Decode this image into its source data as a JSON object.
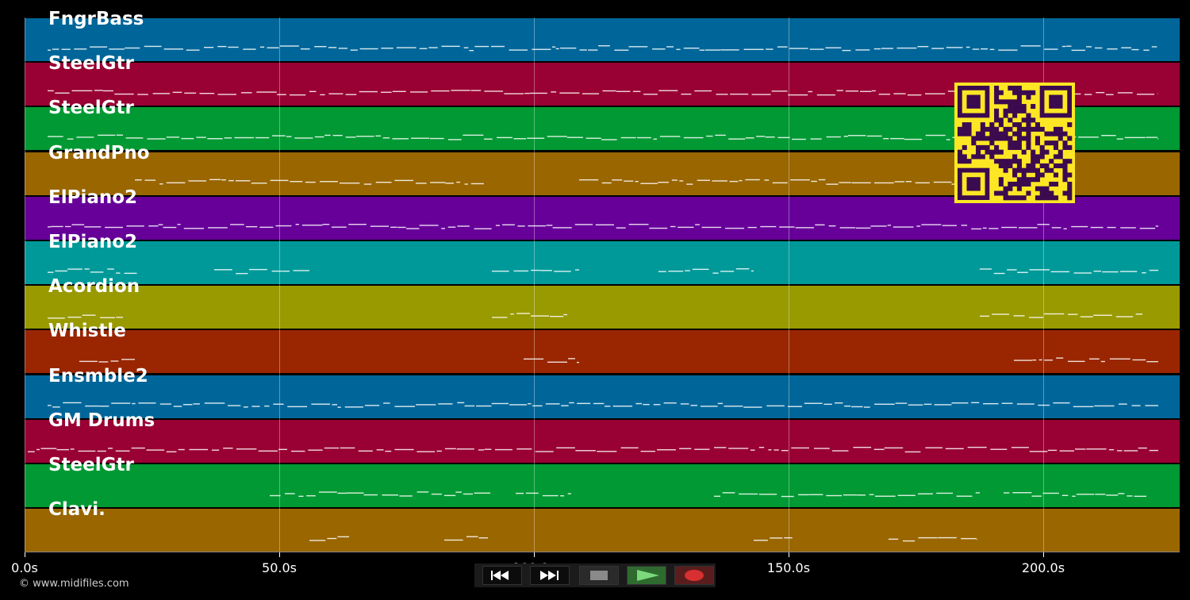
{
  "tracks": [
    {
      "name": "FngrBass",
      "color": "#006699"
    },
    {
      "name": "SteelGtr",
      "color": "#990033"
    },
    {
      "name": "SteelGtr",
      "color": "#009933"
    },
    {
      "name": "GrandPno",
      "color": "#996600"
    },
    {
      "name": "ElPiano2",
      "color": "#660099"
    },
    {
      "name": "ElPiano2",
      "color": "#009999"
    },
    {
      "name": "Acordion",
      "color": "#999900"
    },
    {
      "name": "Whistle",
      "color": "#992600"
    },
    {
      "name": "Ensmble2",
      "color": "#006699"
    },
    {
      "name": "GM Drums",
      "color": "#990033"
    },
    {
      "name": "SteelGtr",
      "color": "#009933"
    },
    {
      "name": "Clavi.",
      "color": "#996600"
    }
  ],
  "axis": {
    "ticks": [
      "0.0s",
      "50.0s",
      "100.0s",
      "150.0s",
      "200.0s"
    ]
  },
  "copyright": "© www.midifiles.com",
  "transport": {
    "rewind": "rewind-icon",
    "forward": "fast-forward-icon",
    "stop": "stop-icon",
    "play": "play-icon",
    "record": "record-icon"
  },
  "qr": "qr-code"
}
